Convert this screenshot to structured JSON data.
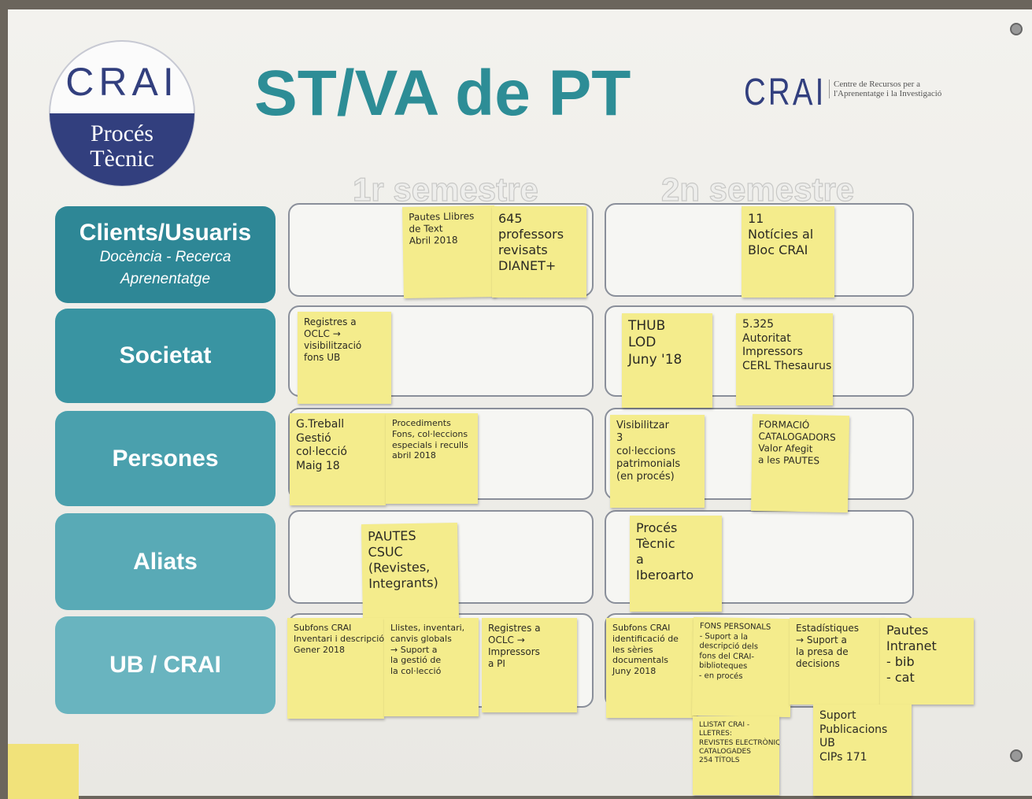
{
  "logo": {
    "name": "CRAI",
    "line1": "Procés",
    "line2": "Tècnic"
  },
  "title": "ST/VA de PT",
  "brand": {
    "name": "CRAI",
    "line1": "Centre de Recursos per a",
    "line2": "l'Aprenentatge i la Investigació"
  },
  "columns": [
    "1r semestre",
    "2n semestre"
  ],
  "rows": [
    {
      "label": "Clients/Usuaris",
      "sub": [
        "Docència - Recerca",
        "Aprenentatge"
      ]
    },
    {
      "label": "Societat"
    },
    {
      "label": "Persones"
    },
    {
      "label": "Aliats"
    },
    {
      "label": "UB / CRAI"
    }
  ],
  "notes": [
    {
      "lines": [
        "Pautes Llibres",
        "de Text",
        "Abril 2018"
      ]
    },
    {
      "lines": [
        "645",
        "professors",
        "revisats",
        "DIANET+"
      ]
    },
    {
      "lines": [
        "11",
        "Notícies al",
        "Bloc CRAI"
      ]
    },
    {
      "lines": [
        "Registres a",
        "OCLC →",
        "visibilització",
        "fons UB"
      ]
    },
    {
      "lines": [
        "THUB",
        "LOD",
        "Juny '18"
      ]
    },
    {
      "lines": [
        "5.325",
        "Autoritat",
        "Impressors",
        "CERL Thesaurus"
      ]
    },
    {
      "lines": [
        "G.Treball",
        "Gestió",
        "col·lecció",
        "Maig 18"
      ]
    },
    {
      "lines": [
        "Procediments",
        "Fons, col·leccions",
        "especials i reculls",
        "abril 2018"
      ]
    },
    {
      "lines": [
        "Visibilitzar",
        "3",
        "col·leccions",
        "patrimonials",
        "(en procés)"
      ]
    },
    {
      "lines": [
        "FORMACIÓ",
        "CATALOGADORS",
        "Valor Afegit",
        "a les PAUTES"
      ]
    },
    {
      "lines": [
        "PAUTES",
        "CSUC",
        "(Revistes,",
        "Integrants)"
      ]
    },
    {
      "lines": [
        "Procés",
        "Tècnic",
        "a",
        "Iberoarto"
      ]
    },
    {
      "lines": [
        "Subfons CRAI",
        "Inventari i descripció",
        "Gener 2018"
      ]
    },
    {
      "lines": [
        "Llistes, inventari,",
        "canvis globals",
        "→ Suport a",
        "la gestió de",
        "la col·lecció"
      ]
    },
    {
      "lines": [
        "Registres a",
        "OCLC →",
        "Impressors",
        "a PI"
      ]
    },
    {
      "lines": [
        "Subfons CRAI",
        "identificació de",
        "les sèries",
        "documentals",
        "Juny 2018"
      ]
    },
    {
      "lines": [
        "FONS PERSONALS",
        "- Suport a la",
        "descripció dels",
        "fons del CRAI-",
        "biblioteques",
        "- en procés"
      ]
    },
    {
      "lines": [
        "Estadístiques",
        "→ Suport a",
        "la presa de",
        "decisions"
      ]
    },
    {
      "lines": [
        "Pautes",
        "Intranet",
        "- bib",
        "- cat"
      ]
    },
    {
      "lines": [
        "LLISTAT CRAI -",
        "LLETRES:",
        "REVISTES ELECTRÒNIQUES",
        "CATALOGADES",
        "254 TÍTOLS"
      ]
    },
    {
      "lines": [
        "Suport",
        "Publicacions",
        "UB",
        "CIPs 171"
      ]
    }
  ]
}
